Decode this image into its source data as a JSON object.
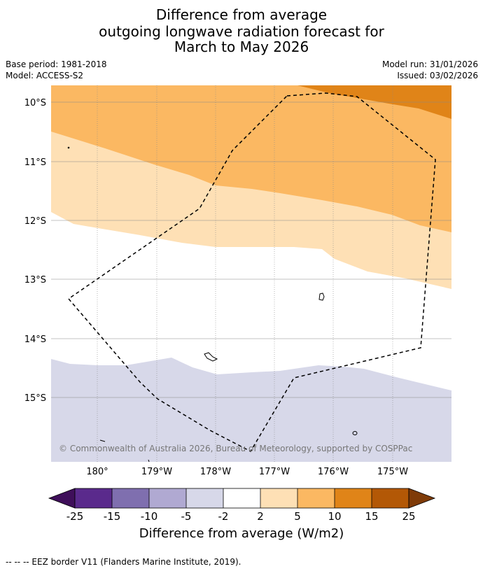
{
  "title": {
    "line1": "Difference from average",
    "line2": "outgoing longwave radiation forecast for",
    "line3": "March to May 2026"
  },
  "meta": {
    "base_period": "Base period: 1981-2018",
    "model": "Model: ACCESS-S2",
    "model_run": "Model run: 31/01/2026",
    "issued": "Issued: 03/02/2026"
  },
  "map": {
    "lat_labels": [
      "10°S",
      "11°S",
      "12°S",
      "13°S",
      "14°S",
      "15°S"
    ],
    "lon_labels": [
      "180°",
      "179°W",
      "178°W",
      "177°W",
      "176°W",
      "175°W"
    ],
    "copyright": "© Commonwealth of Australia 2026, Bureau of Meteorology, supported by COSPPac",
    "colors": {
      "strong_positive": "#e08418",
      "positive": "#fbb862",
      "weak_positive": "#fee0b5",
      "neutral": "#ffffff",
      "weak_negative": "#d7d8e9"
    }
  },
  "colorbar": {
    "title": "Difference from average (W/m2)",
    "ticks": [
      "-25",
      "-15",
      "-10",
      "-5",
      "-2",
      "2",
      "5",
      "10",
      "15",
      "25"
    ],
    "colors": [
      "#3f0f5a",
      "#5a2a8c",
      "#7f6faf",
      "#b0a9d2",
      "#d7d8e9",
      "#ffffff",
      "#fee0b5",
      "#fbb862",
      "#e08418",
      "#b35806",
      "#7f3b08"
    ]
  },
  "footer": "--  --  -- EEZ border V11 (Flanders Marine Institute, 2019)."
}
